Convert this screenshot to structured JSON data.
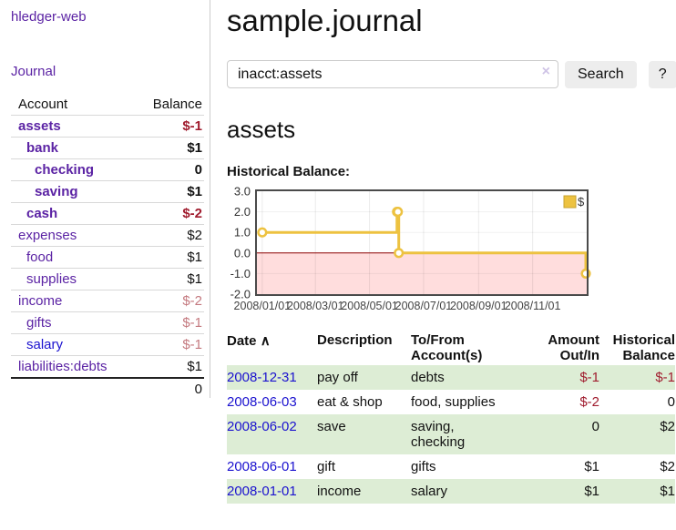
{
  "sidebar": {
    "brand": "hledger-web",
    "journal_link": "Journal",
    "accounts_header": {
      "account": "Account",
      "balance": "Balance"
    },
    "accounts": [
      {
        "name": "assets",
        "depth": 0,
        "bold": true,
        "balance": "$-1"
      },
      {
        "name": "bank",
        "depth": 1,
        "bold": true,
        "balance": "$1"
      },
      {
        "name": "checking",
        "depth": 2,
        "bold": true,
        "balance": "0"
      },
      {
        "name": "saving",
        "depth": 2,
        "bold": true,
        "balance": "$1"
      },
      {
        "name": "cash",
        "depth": 1,
        "bold": true,
        "balance": "$-2"
      },
      {
        "name": "expenses",
        "depth": 0,
        "bold": false,
        "balance": "$2"
      },
      {
        "name": "food",
        "depth": 1,
        "bold": false,
        "balance": "$1"
      },
      {
        "name": "supplies",
        "depth": 1,
        "bold": false,
        "balance": "$1"
      },
      {
        "name": "income",
        "depth": 0,
        "bold": false,
        "balance": "$-2"
      },
      {
        "name": "gifts",
        "depth": 1,
        "bold": false,
        "balance": "$-1"
      },
      {
        "name": "salary",
        "depth": 1,
        "bold": false,
        "balance": "$-1",
        "link_style": "blue"
      },
      {
        "name": "liabilities:debts",
        "depth": 0,
        "bold": false,
        "balance": "$1"
      }
    ],
    "total": "0"
  },
  "main": {
    "title": "sample.journal",
    "search": {
      "value": "inacct:assets",
      "clear_icon": "×",
      "search_button": "Search",
      "help_button": "?"
    },
    "account_heading": "assets",
    "chart_label": "Historical Balance:"
  },
  "chart_data": {
    "type": "line",
    "step": true,
    "title": "Historical Balance",
    "x": [
      "2008-01-01",
      "2008-06-01",
      "2008-06-02",
      "2008-06-03",
      "2008-12-31"
    ],
    "series": [
      {
        "name": "$",
        "color": "#edc240",
        "values": [
          1,
          2,
          2,
          0,
          -1
        ]
      }
    ],
    "x_tick_labels": [
      "2008/01/01",
      "2008/03/01",
      "2008/05/01",
      "2008/07/01",
      "2008/09/01",
      "2008/11/01"
    ],
    "x_tick_dates": [
      "2008-01-01",
      "2008-03-01",
      "2008-05-01",
      "2008-07-01",
      "2008-09-01",
      "2008-11-01"
    ],
    "y_ticks": [
      3,
      2,
      1,
      0,
      -1,
      -2
    ],
    "y_tick_labels": [
      "3.0",
      "2.0",
      "1.0",
      "0.0",
      "-1.0",
      "-2.0"
    ],
    "ylim": [
      -2,
      3
    ],
    "x_pad_days": [
      6,
      1
    ],
    "grid": true,
    "legend": {
      "position": "top-right",
      "entries": [
        {
          "label": "$",
          "color": "#edc240"
        }
      ]
    },
    "negative_region_color": "#ffdddd",
    "zero_line_color": "#8b0000"
  },
  "register": {
    "columns": [
      {
        "label": "Date",
        "align": "left",
        "sort_indicator": "∧"
      },
      {
        "label": "Description",
        "align": "left"
      },
      {
        "label": "To/From Account(s)",
        "align": "left"
      },
      {
        "label": "Amount Out/In",
        "align": "right"
      },
      {
        "label": "Historical Balance",
        "align": "right"
      }
    ],
    "rows": [
      {
        "date": "2008-12-31",
        "description": "pay off",
        "accounts": "debts",
        "amount": "$-1",
        "balance": "$-1"
      },
      {
        "date": "2008-06-03",
        "description": "eat & shop",
        "accounts": "food, supplies",
        "amount": "$-2",
        "balance": "0"
      },
      {
        "date": "2008-06-02",
        "description": "save",
        "accounts": "saving, checking",
        "amount": "0",
        "balance": "$2"
      },
      {
        "date": "2008-06-01",
        "description": "gift",
        "accounts": "gifts",
        "amount": "$1",
        "balance": "$2"
      },
      {
        "date": "2008-01-01",
        "description": "income",
        "accounts": "salary",
        "amount": "$1",
        "balance": "$1"
      }
    ]
  }
}
